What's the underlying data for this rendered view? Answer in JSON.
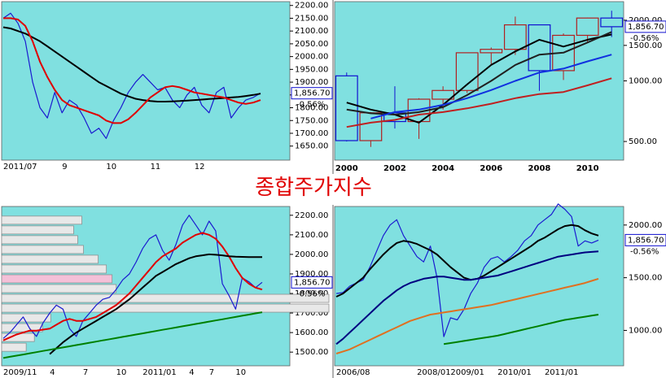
{
  "title": "종합주가지수",
  "chart_data": [
    {
      "type": "line",
      "categories": [
        "2011/07",
        null,
        null,
        null,
        null,
        null,
        null,
        null,
        "9",
        null,
        null,
        null,
        null,
        null,
        "10",
        null,
        null,
        null,
        null,
        null,
        "11",
        null,
        null,
        null,
        null,
        null,
        "12",
        null,
        null,
        null,
        null,
        null,
        null,
        null,
        null,
        null
      ],
      "series": [
        {
          "name": "price",
          "color": "#1a1ad0",
          "values": [
            2150,
            2170,
            2130,
            2060,
            1900,
            1800,
            1760,
            1860,
            1780,
            1830,
            1810,
            1760,
            1700,
            1720,
            1680,
            1750,
            1800,
            1860,
            1900,
            1930,
            1900,
            1870,
            1880,
            1830,
            1800,
            1850,
            1880,
            1810,
            1780,
            1860,
            1880,
            1760,
            1800,
            1830,
            1840,
            1857
          ]
        },
        {
          "name": "ma-long",
          "color": "#000000",
          "values": [
            2115,
            2110,
            2100,
            2090,
            2075,
            2060,
            2040,
            2020,
            2000,
            1980,
            1960,
            1940,
            1920,
            1900,
            1885,
            1870,
            1855,
            1845,
            1835,
            1830,
            1826,
            1824,
            1824,
            1825,
            1826,
            1828,
            1830,
            1832,
            1834,
            1836,
            1838,
            1840,
            1842,
            1846,
            1850,
            1855
          ]
        },
        {
          "name": "ma-short",
          "color": "#e00000",
          "values": [
            2150,
            2150,
            2145,
            2120,
            2060,
            1980,
            1920,
            1870,
            1830,
            1810,
            1800,
            1790,
            1780,
            1770,
            1750,
            1740,
            1740,
            1755,
            1780,
            1810,
            1840,
            1860,
            1880,
            1885,
            1880,
            1870,
            1860,
            1855,
            1850,
            1845,
            1840,
            1830,
            1820,
            1815,
            1820,
            1830
          ]
        }
      ],
      "ylim": [
        1595,
        2215
      ],
      "yticks": [
        {
          "value": 1650,
          "label": "1650.00"
        },
        {
          "value": 1700,
          "label": "1700.00"
        },
        {
          "value": 1750,
          "label": "1750.00"
        },
        {
          "value": 1800,
          "label": "1800.00"
        },
        {
          "value": 1850,
          "label": "1850.00"
        },
        {
          "value": 1900,
          "label": "1900.00"
        },
        {
          "value": 1950,
          "label": "1950.00"
        },
        {
          "value": 2000,
          "label": "2000.00"
        },
        {
          "value": 2050,
          "label": "2050.00"
        },
        {
          "value": 2100,
          "label": "2100.00"
        },
        {
          "value": 2150,
          "label": "2150.00"
        },
        {
          "value": 2200,
          "label": "2200.00"
        }
      ],
      "last": {
        "value": 1856.7,
        "label": "1,856.70"
      },
      "change": "-0.56%"
    },
    {
      "type": "candlestick",
      "categories": [
        "2000",
        null,
        "2002",
        null,
        "2004",
        null,
        "2006",
        null,
        "2008",
        null,
        "2010",
        null
      ],
      "open": [
        1059,
        505,
        694,
        628,
        811,
        896,
        1379,
        1434,
        1897,
        1124,
        1683,
        2051
      ],
      "high": [
        1100,
        700,
        940,
        820,
        940,
        1380,
        1465,
        2085,
        1900,
        1720,
        2060,
        2230
      ],
      "low": [
        500,
        470,
        580,
        515,
        720,
        870,
        1200,
        1345,
        892,
        1010,
        1550,
        1650
      ],
      "close": [
        505,
        694,
        628,
        811,
        896,
        1379,
        1434,
        1897,
        1124,
        1683,
        2051,
        1857
      ],
      "up_color": "#b02020",
      "down_color": "#1010d0",
      "series": [
        {
          "name": "ma-1",
          "color": "#000000",
          "values": [
            780,
            720,
            680,
            620,
            760,
            960,
            1200,
            1400,
            1600,
            1480,
            1600,
            1700
          ]
        },
        {
          "name": "ma-2",
          "color": "#202020",
          "values": [
            720,
            690,
            680,
            700,
            740,
            850,
            1000,
            1200,
            1350,
            1380,
            1550,
            1750
          ]
        },
        {
          "name": "ma-3",
          "color": "#1030e0",
          "values": [
            null,
            650,
            700,
            720,
            760,
            820,
            900,
            1000,
            1100,
            1150,
            1250,
            1350
          ]
        },
        {
          "name": "ma-4",
          "color": "#c02020",
          "values": [
            590,
            620,
            640,
            680,
            700,
            730,
            770,
            820,
            860,
            880,
            950,
            1030
          ]
        }
      ],
      "log": true,
      "ylim": [
        404,
        2474
      ],
      "yticks": [
        {
          "value": 500,
          "label": "500.00"
        },
        {
          "value": 1000,
          "label": "1000.00"
        },
        {
          "value": 1500,
          "label": "1500.00"
        },
        {
          "value": 2000,
          "label": "2000.00"
        }
      ],
      "last": {
        "value": 1856.7,
        "label": "1,856.70"
      },
      "change": "-0.56%"
    },
    {
      "type": "line",
      "categories": [
        "2009/11",
        null,
        null,
        null,
        null,
        null,
        null,
        "4",
        null,
        null,
        null,
        null,
        "7",
        null,
        null,
        null,
        null,
        "10",
        null,
        null,
        null,
        "2011/01",
        null,
        null,
        null,
        null,
        null,
        null,
        "4",
        null,
        null,
        "7",
        null,
        null,
        null,
        "10",
        null,
        null,
        null,
        null
      ],
      "profile": {
        "bins": [
          1500,
          1550,
          1600,
          1650,
          1700,
          1750,
          1800,
          1850,
          1900,
          1950,
          2000,
          2050,
          2100,
          2150,
          2200
        ],
        "values": [
          30,
          40,
          50,
          60,
          400,
          400,
          140,
          135,
          128,
          118,
          100,
          93,
          88,
          98
        ],
        "colors": [
          "#e8e8e8",
          "#e8e8e8",
          "#e8e8e8",
          "#e8e8e8",
          "#e8e8e8",
          "#e8e8e8",
          "#e8e8e8",
          "#f4c0d8",
          "#e8e8e8",
          "#e8e8e8",
          "#e8e8e8",
          "#e8e8e8",
          "#e8e8e8",
          "#e8e8e8"
        ]
      },
      "series": [
        {
          "name": "price",
          "color": "#1a1ad0",
          "values": [
            1570,
            1600,
            1640,
            1680,
            1620,
            1580,
            1650,
            1700,
            1740,
            1720,
            1620,
            1580,
            1660,
            1700,
            1740,
            1770,
            1780,
            1820,
            1870,
            1900,
            1960,
            2030,
            2080,
            2100,
            2020,
            1970,
            2050,
            2150,
            2200,
            2150,
            2100,
            2170,
            2120,
            1850,
            1790,
            1720,
            1880,
            1860,
            1830,
            1857
          ]
        },
        {
          "name": "ma-short",
          "color": "#e00000",
          "values": [
            1560,
            1575,
            1590,
            1600,
            1610,
            1610,
            1615,
            1620,
            1640,
            1660,
            1670,
            1660,
            1660,
            1670,
            1680,
            1700,
            1720,
            1740,
            1770,
            1800,
            1840,
            1880,
            1920,
            1960,
            1990,
            2010,
            2030,
            2060,
            2080,
            2100,
            2110,
            2100,
            2080,
            2040,
            1990,
            1930,
            1880,
            1850,
            1830,
            1820
          ]
        },
        {
          "name": "ma-mid",
          "color": "#000000",
          "values": [
            null,
            null,
            null,
            null,
            null,
            null,
            null,
            1490,
            1520,
            1550,
            1575,
            1600,
            1620,
            1640,
            1660,
            1680,
            1700,
            1720,
            1745,
            1770,
            1800,
            1830,
            1860,
            1890,
            1910,
            1930,
            1950,
            1965,
            1980,
            1990,
            1995,
            2000,
            1998,
            1995,
            1990,
            1988,
            1987,
            1986,
            1986,
            1986
          ]
        },
        {
          "name": "ma-long",
          "color": "#008000",
          "values": [
            1470,
            1476,
            1482,
            1488,
            1494,
            1500,
            1506,
            1512,
            1518,
            1524,
            1530,
            1536,
            1542,
            1548,
            1554,
            1560,
            1566,
            1572,
            1578,
            1584,
            1590,
            1596,
            1602,
            1608,
            1614,
            1620,
            1626,
            1632,
            1638,
            1644,
            1650,
            1656,
            1662,
            1668,
            1674,
            1680,
            1686,
            1692,
            1698,
            1704
          ]
        }
      ],
      "ylim": [
        1430,
        2245
      ],
      "yticks": [
        {
          "value": 1500,
          "label": "1500.00"
        },
        {
          "value": 1600,
          "label": "1600.00"
        },
        {
          "value": 1700,
          "label": "1700.00"
        },
        {
          "value": 1800,
          "label": "1800.00"
        },
        {
          "value": 1900,
          "label": "1900.00"
        },
        {
          "value": 2000,
          "label": "2000.00"
        },
        {
          "value": 2100,
          "label": "2100.00"
        },
        {
          "value": 2200,
          "label": "2200.00"
        }
      ],
      "last": {
        "value": 1856.7,
        "label": "1,856.70"
      },
      "change": "-0.56%"
    },
    {
      "type": "line",
      "categories": [
        "2006/08",
        null,
        null,
        null,
        null,
        null,
        null,
        null,
        null,
        null,
        null,
        null,
        "2008/01",
        null,
        null,
        null,
        null,
        "2009/01",
        null,
        null,
        null,
        null,
        null,
        null,
        "2010/01",
        null,
        null,
        null,
        null,
        null,
        null,
        "2011/01",
        null,
        null,
        null,
        null,
        null,
        null,
        null,
        null
      ],
      "series": [
        {
          "name": "price",
          "color": "#1a1ad0",
          "values": [
            1350,
            1360,
            1420,
            1450,
            1480,
            1600,
            1750,
            1900,
            2000,
            2050,
            1900,
            1800,
            1700,
            1650,
            1800,
            1500,
            940,
            1120,
            1100,
            1200,
            1350,
            1450,
            1600,
            1680,
            1700,
            1650,
            1700,
            1760,
            1850,
            1900,
            2000,
            2050,
            2100,
            2200,
            2150,
            2080,
            1800,
            1850,
            1830,
            1857
          ]
        },
        {
          "name": "ma-1",
          "color": "#000000",
          "values": [
            1320,
            1350,
            1400,
            1450,
            1500,
            1580,
            1650,
            1720,
            1780,
            1830,
            1850,
            1840,
            1820,
            1790,
            1760,
            1720,
            1660,
            1600,
            1550,
            1500,
            1480,
            1490,
            1520,
            1560,
            1600,
            1640,
            1680,
            1720,
            1760,
            1800,
            1850,
            1880,
            1920,
            1960,
            1990,
            2000,
            1990,
            1950,
            1920,
            1900
          ]
        },
        {
          "name": "ma-2",
          "color": "#000080",
          "values": [
            870,
            920,
            980,
            1040,
            1100,
            1160,
            1220,
            1280,
            1330,
            1380,
            1420,
            1450,
            1470,
            1490,
            1500,
            1510,
            1510,
            1500,
            1490,
            1480,
            1480,
            1490,
            1500,
            1510,
            1520,
            1540,
            1560,
            1580,
            1600,
            1620,
            1640,
            1660,
            1680,
            1700,
            1710,
            1720,
            1730,
            1740,
            1745,
            1750
          ]
        },
        {
          "name": "ma-3",
          "color": "#e07020",
          "values": [
            780,
            800,
            820,
            850,
            880,
            910,
            940,
            970,
            1000,
            1030,
            1060,
            1090,
            1110,
            1130,
            1150,
            1160,
            1170,
            1180,
            1190,
            1200,
            1210,
            1220,
            1230,
            1240,
            1255,
            1270,
            1285,
            1300,
            1315,
            1330,
            1345,
            1360,
            1375,
            1390,
            1405,
            1420,
            1435,
            1450,
            1470,
            1490
          ]
        },
        {
          "name": "ma-4",
          "color": "#008000",
          "values": [
            null,
            null,
            null,
            null,
            null,
            null,
            null,
            null,
            null,
            null,
            null,
            null,
            null,
            null,
            null,
            null,
            870,
            880,
            890,
            900,
            910,
            920,
            930,
            940,
            950,
            965,
            980,
            995,
            1010,
            1025,
            1040,
            1055,
            1070,
            1085,
            1100,
            1110,
            1120,
            1130,
            1140,
            1150
          ]
        }
      ],
      "ylim": [
        664,
        2176
      ],
      "yticks": [
        {
          "value": 1000,
          "label": "1000.00"
        },
        {
          "value": 1500,
          "label": "1500.00"
        },
        {
          "value": 2000,
          "label": "2000.00"
        }
      ],
      "last": {
        "value": 1856.7,
        "label": "1,856.70"
      },
      "change": "-0.56%"
    }
  ]
}
